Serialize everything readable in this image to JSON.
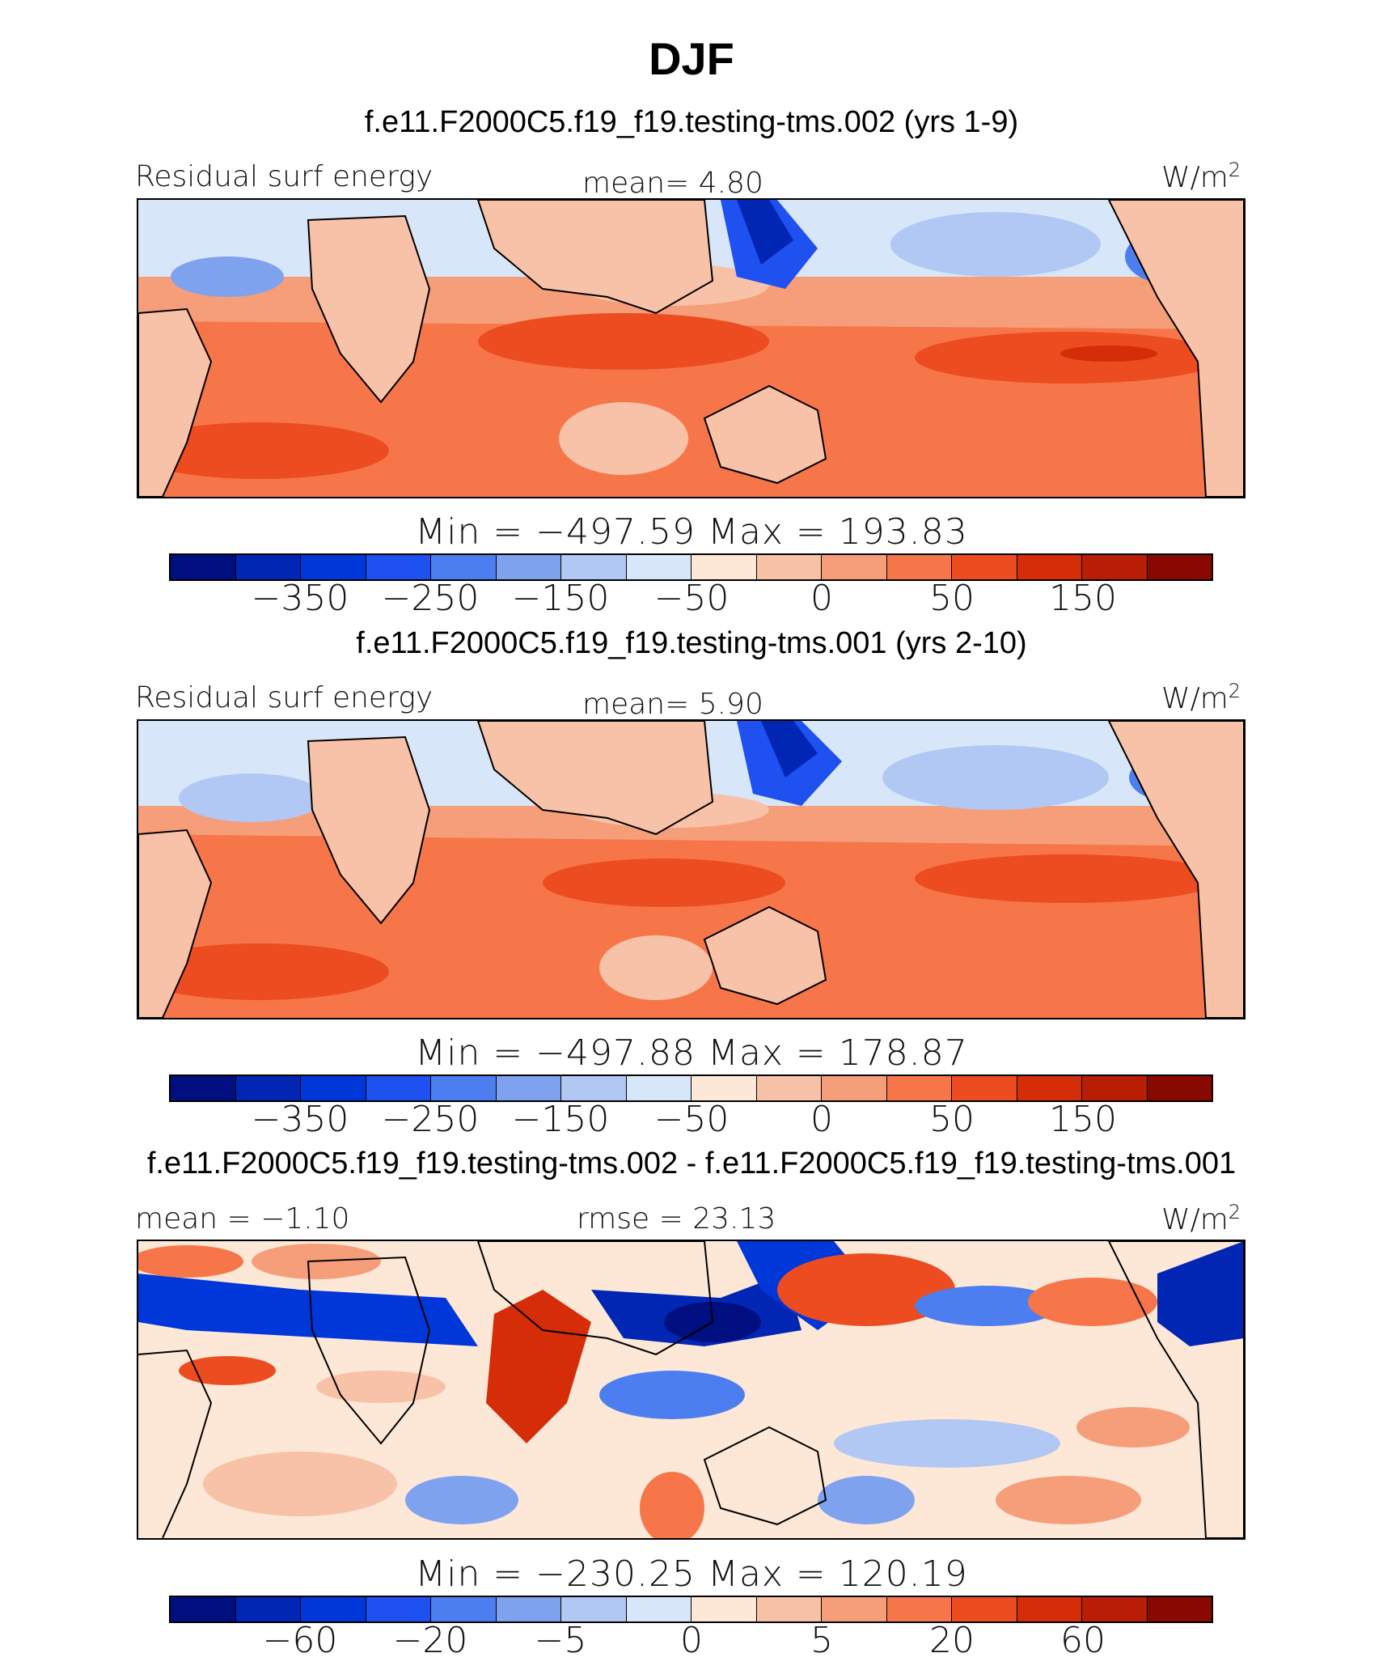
{
  "title": "DJF",
  "panels": [
    {
      "case": "f.e11.F2000C5.f19_f19.testing-tms.002 (yrs 1-9)",
      "left_label": "Residual surf energy",
      "center_label": "mean=   4.80",
      "units": "W/m",
      "units_sup": "2",
      "minmax": "Min = −497.59 Max = 193.83",
      "ticks": [
        "−350",
        "−250",
        "−150",
        "−50",
        "0",
        "50",
        "150"
      ]
    },
    {
      "case": "f.e11.F2000C5.f19_f19.testing-tms.001 (yrs 2-10)",
      "left_label": "Residual surf energy",
      "center_label": "mean=   5.90",
      "units": "W/m",
      "units_sup": "2",
      "minmax": "Min = −497.88 Max = 178.87",
      "ticks": [
        "−350",
        "−250",
        "−150",
        "−50",
        "0",
        "50",
        "150"
      ]
    },
    {
      "case": "f.e11.F2000C5.f19_f19.testing-tms.002 - f.e11.F2000C5.f19_f19.testing-tms.001",
      "left_label": "mean =  −1.10",
      "center_label": "rmse =  23.13",
      "units": "W/m",
      "units_sup": "2",
      "minmax": "Min = −230.25 Max = 120.19",
      "ticks": [
        "−60",
        "−20",
        "−5",
        "0",
        "5",
        "20",
        "60"
      ]
    }
  ],
  "chart_data": [
    {
      "type": "heatmap",
      "title": "f.e11.F2000C5.f19_f19.testing-tms.002 (yrs 1-9)",
      "variable": "Residual surf energy",
      "units": "W/m2",
      "mean": 4.8,
      "min": -497.59,
      "max": 193.83,
      "colorbar_ticks": [
        -350,
        -250,
        -150,
        -50,
        0,
        50,
        150
      ],
      "colors": [
        "#000f7f",
        "#0026b3",
        "#0037d9",
        "#1f50f0",
        "#4d7ef0",
        "#7fa2ef",
        "#b1c8f5",
        "#d8e6f9",
        "#fde8d8",
        "#f8c2a8",
        "#f69e79",
        "#f6764a",
        "#ec4c1f",
        "#d42d08",
        "#b81e05",
        "#870900"
      ]
    },
    {
      "type": "heatmap",
      "title": "f.e11.F2000C5.f19_f19.testing-tms.001 (yrs 2-10)",
      "variable": "Residual surf energy",
      "units": "W/m2",
      "mean": 5.9,
      "min": -497.88,
      "max": 178.87,
      "colorbar_ticks": [
        -350,
        -250,
        -150,
        -50,
        0,
        50,
        150
      ],
      "colors": [
        "#000f7f",
        "#0026b3",
        "#0037d9",
        "#1f50f0",
        "#4d7ef0",
        "#7fa2ef",
        "#b1c8f5",
        "#d8e6f9",
        "#fde8d8",
        "#f8c2a8",
        "#f69e79",
        "#f6764a",
        "#ec4c1f",
        "#d42d08",
        "#b81e05",
        "#870900"
      ]
    },
    {
      "type": "heatmap",
      "title": "f.e11.F2000C5.f19_f19.testing-tms.002 - f.e11.F2000C5.f19_f19.testing-tms.001",
      "units": "W/m2",
      "mean": -1.1,
      "rmse": 23.13,
      "min": -230.25,
      "max": 120.19,
      "colorbar_ticks": [
        -60,
        -20,
        -5,
        0,
        5,
        20,
        60
      ],
      "colors": [
        "#000f7f",
        "#0026b3",
        "#0037d9",
        "#1f50f0",
        "#4d7ef0",
        "#7fa2ef",
        "#b1c8f5",
        "#d8e6f9",
        "#fde8d8",
        "#f8c2a8",
        "#f69e79",
        "#f6764a",
        "#ec4c1f",
        "#d42d08",
        "#b81e05",
        "#870900"
      ]
    }
  ]
}
